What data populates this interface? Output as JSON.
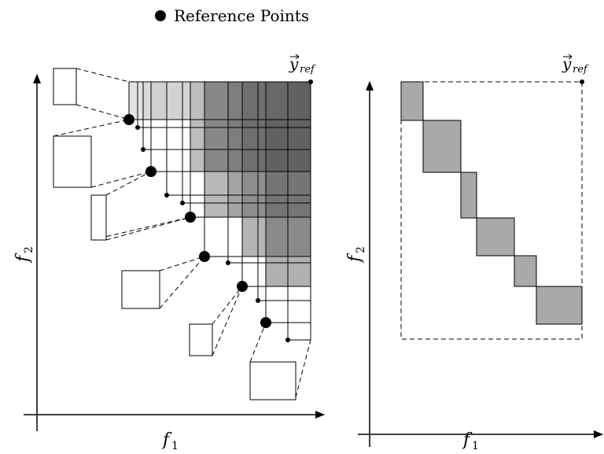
{
  "legend": {
    "label": "Reference Points",
    "marker": "filled-circle"
  },
  "left_panel": {
    "x_axis_label": "f",
    "x_axis_sub": "1",
    "y_axis_label": "f",
    "y_axis_sub": "2",
    "ref_label": "y",
    "ref_sub": "ref"
  },
  "right_panel": {
    "x_axis_label": "f",
    "x_axis_sub": "1",
    "y_axis_label": "f",
    "y_axis_sub": "2",
    "ref_label": "y",
    "ref_sub": "ref"
  },
  "colors": {
    "stroke": "#000000",
    "shade_light": "#d9d9d9",
    "shade_mid_light": "#c2c2c2",
    "shade_mid": "#a8a8a8",
    "shade_dark": "#878787",
    "shade_darkest": "#6a6a6a",
    "right_boxes": "#a6a6a6"
  }
}
